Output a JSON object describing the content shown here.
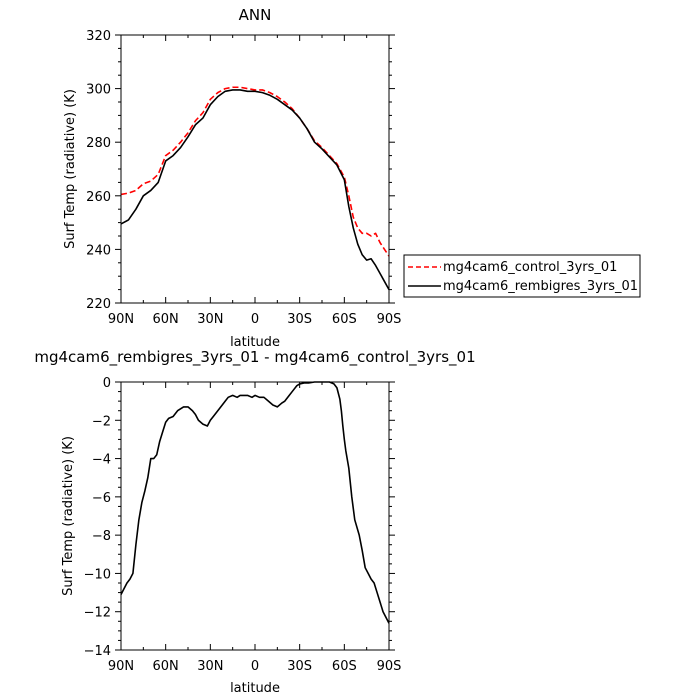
{
  "chart_data": [
    {
      "type": "line",
      "title": "ANN",
      "xlabel": "latitude",
      "ylabel": "Surf Temp (radiative) (K)",
      "xlim": [
        90,
        -90
      ],
      "ylim": [
        220,
        320
      ],
      "x_ticks": [
        90,
        60,
        30,
        0,
        -30,
        -60,
        -90
      ],
      "x_tick_labels": [
        "90N",
        "60N",
        "30N",
        "0",
        "30S",
        "60S",
        "90S"
      ],
      "y_ticks": [
        220,
        240,
        260,
        280,
        300,
        320
      ],
      "y_tick_labels": [
        "220",
        "240",
        "260",
        "280",
        "300",
        "320"
      ],
      "legend_position": "right",
      "series": [
        {
          "name": "mg4cam6_control_3yrs_01",
          "color": "#ff0000",
          "dash": "dashed",
          "x": [
            90,
            85,
            80,
            75,
            70,
            65,
            60,
            55,
            50,
            45,
            40,
            35,
            30,
            25,
            20,
            15,
            10,
            5,
            0,
            -5,
            -10,
            -15,
            -20,
            -25,
            -30,
            -35,
            -40,
            -45,
            -50,
            -55,
            -60,
            -63,
            -66,
            -69,
            -72,
            -75,
            -78,
            -81,
            -84,
            -87,
            -90
          ],
          "values": [
            260.5,
            261,
            262,
            264.5,
            265.5,
            268,
            275,
            277,
            280,
            283.5,
            288,
            291,
            296,
            298.5,
            300,
            300.5,
            300.5,
            300,
            299.5,
            299.5,
            298.5,
            297,
            295,
            292.5,
            289,
            285,
            280.5,
            278,
            275,
            272,
            267,
            260,
            252,
            248,
            246,
            246,
            245,
            246,
            242.5,
            240,
            237.5
          ]
        },
        {
          "name": "mg4cam6_rembigres_3yrs_01",
          "color": "#000000",
          "dash": "solid",
          "x": [
            90,
            85,
            80,
            75,
            70,
            65,
            60,
            55,
            50,
            45,
            40,
            35,
            30,
            25,
            20,
            15,
            10,
            5,
            0,
            -5,
            -10,
            -15,
            -20,
            -25,
            -30,
            -35,
            -40,
            -45,
            -50,
            -55,
            -60,
            -63,
            -66,
            -69,
            -72,
            -75,
            -78,
            -81,
            -84,
            -87,
            -90
          ],
          "values": [
            249.5,
            251,
            255,
            260,
            262,
            265,
            273,
            275,
            278,
            282,
            286.5,
            289,
            294,
            297,
            299,
            299.5,
            299.5,
            299,
            299,
            298.5,
            297.5,
            296,
            294,
            292,
            289,
            285,
            280,
            277.5,
            274.5,
            271.5,
            266,
            256,
            248,
            242,
            238,
            236,
            236.5,
            234,
            231,
            228,
            225
          ]
        }
      ]
    },
    {
      "type": "line",
      "title": "mg4cam6_rembigres_3yrs_01 - mg4cam6_control_3yrs_01",
      "xlabel": "latitude",
      "ylabel": "Surf Temp (radiative) (K)",
      "xlim": [
        90,
        -90
      ],
      "ylim": [
        -14,
        0
      ],
      "x_ticks": [
        90,
        60,
        30,
        0,
        -30,
        -60,
        -90
      ],
      "x_tick_labels": [
        "90N",
        "60N",
        "30N",
        "0",
        "30S",
        "60S",
        "90S"
      ],
      "y_ticks": [
        -14,
        -12,
        -10,
        -8,
        -6,
        -4,
        -2,
        0
      ],
      "y_tick_labels": [
        "−14",
        "−12",
        "−10",
        "−8",
        "−6",
        "−4",
        "−2",
        "0"
      ],
      "series": [
        {
          "color": "#000000",
          "dash": "solid",
          "x": [
            90,
            88,
            86,
            84,
            82,
            80,
            78,
            76,
            74,
            72,
            70,
            68,
            66,
            64,
            62,
            60,
            58,
            55,
            52,
            50,
            48,
            45,
            42,
            40,
            38,
            35,
            32,
            30,
            28,
            25,
            22,
            20,
            18,
            15,
            12,
            10,
            8,
            5,
            2,
            0,
            -3,
            -6,
            -9,
            -12,
            -15,
            -18,
            -20,
            -23,
            -25,
            -28,
            -30,
            -33,
            -36,
            -40,
            -45,
            -50,
            -53,
            -55,
            -57,
            -58,
            -59,
            -60,
            -61,
            -63,
            -65,
            -67,
            -70,
            -72,
            -74,
            -76,
            -78,
            -80,
            -82,
            -84,
            -86,
            -88,
            -90
          ],
          "values": [
            -11.1,
            -10.8,
            -10.5,
            -10.3,
            -10.0,
            -8.5,
            -7.2,
            -6.3,
            -5.7,
            -5.0,
            -4.0,
            -4.0,
            -3.8,
            -3.1,
            -2.6,
            -2.1,
            -1.9,
            -1.8,
            -1.5,
            -1.4,
            -1.3,
            -1.3,
            -1.5,
            -1.7,
            -2.0,
            -2.2,
            -2.3,
            -2.0,
            -1.8,
            -1.5,
            -1.2,
            -1.0,
            -0.8,
            -0.7,
            -0.8,
            -0.7,
            -0.7,
            -0.7,
            -0.8,
            -0.7,
            -0.8,
            -0.8,
            -1.0,
            -1.2,
            -1.3,
            -1.1,
            -1.0,
            -0.7,
            -0.5,
            -0.2,
            -0.1,
            -0.05,
            -0.05,
            -0.0,
            -0.0,
            -0.0,
            -0.1,
            -0.3,
            -0.9,
            -1.5,
            -2.3,
            -3.0,
            -3.6,
            -4.5,
            -6.0,
            -7.2,
            -8.0,
            -8.8,
            -9.7,
            -10.0,
            -10.3,
            -10.5,
            -11.0,
            -11.5,
            -12.0,
            -12.3,
            -12.6
          ]
        }
      ]
    }
  ]
}
